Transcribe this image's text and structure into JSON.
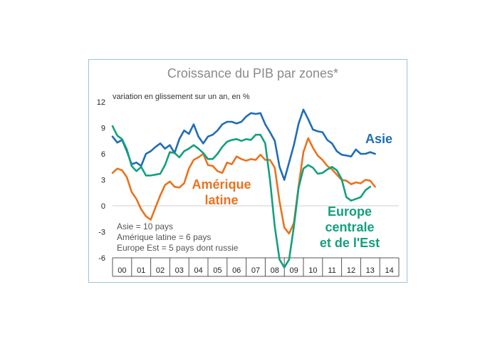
{
  "chart_data": {
    "type": "line",
    "title": "Croissance du PIB par zones*",
    "subtitle": "variation en glissement sur un an, en %",
    "ylim": [
      -6,
      12
    ],
    "yticks": [
      "12",
      "9",
      "6",
      "3",
      "0",
      "-3",
      "-6"
    ],
    "xlim": [
      2000,
      2015
    ],
    "xticks": [
      "00",
      "01",
      "02",
      "03",
      "04",
      "05",
      "06",
      "07",
      "08",
      "09",
      "10",
      "11",
      "12",
      "13",
      "14"
    ],
    "notes": [
      "Asie = 10 pays",
      "Amérique latine = 6 pays",
      "Europe Est = 5 pays dont russie"
    ],
    "series": [
      {
        "name": "Asie",
        "label_lines": [
          "Asie"
        ],
        "color": "#1f6db5",
        "points": [
          [
            2000.0,
            8.0
          ],
          [
            2000.25,
            7.3
          ],
          [
            2000.5,
            7.6
          ],
          [
            2000.75,
            6.3
          ],
          [
            2001.0,
            4.8
          ],
          [
            2001.25,
            5.0
          ],
          [
            2001.5,
            4.6
          ],
          [
            2001.75,
            6.0
          ],
          [
            2002.0,
            6.3
          ],
          [
            2002.25,
            6.8
          ],
          [
            2002.5,
            7.2
          ],
          [
            2002.75,
            6.6
          ],
          [
            2003.0,
            7.0
          ],
          [
            2003.25,
            6.1
          ],
          [
            2003.5,
            7.7
          ],
          [
            2003.75,
            8.7
          ],
          [
            2004.0,
            8.3
          ],
          [
            2004.25,
            9.4
          ],
          [
            2004.5,
            8.0
          ],
          [
            2004.75,
            7.2
          ],
          [
            2005.0,
            8.0
          ],
          [
            2005.25,
            8.2
          ],
          [
            2005.5,
            8.7
          ],
          [
            2005.75,
            9.4
          ],
          [
            2006.0,
            9.7
          ],
          [
            2006.25,
            9.7
          ],
          [
            2006.5,
            9.5
          ],
          [
            2006.75,
            9.7
          ],
          [
            2007.0,
            10.3
          ],
          [
            2007.25,
            10.7
          ],
          [
            2007.5,
            10.6
          ],
          [
            2007.75,
            10.7
          ],
          [
            2008.0,
            9.4
          ],
          [
            2008.25,
            8.5
          ],
          [
            2008.5,
            7.5
          ],
          [
            2008.75,
            4.5
          ],
          [
            2009.0,
            3.0
          ],
          [
            2009.25,
            5.0
          ],
          [
            2009.5,
            7.0
          ],
          [
            2009.75,
            9.5
          ],
          [
            2010.0,
            11.1
          ],
          [
            2010.25,
            10.0
          ],
          [
            2010.5,
            8.8
          ],
          [
            2010.75,
            8.6
          ],
          [
            2011.0,
            8.5
          ],
          [
            2011.25,
            7.6
          ],
          [
            2011.5,
            7.2
          ],
          [
            2011.75,
            6.3
          ],
          [
            2012.0,
            5.9
          ],
          [
            2012.25,
            5.8
          ],
          [
            2012.5,
            5.7
          ],
          [
            2012.75,
            6.5
          ],
          [
            2013.0,
            6.0
          ],
          [
            2013.25,
            6.0
          ],
          [
            2013.5,
            6.2
          ],
          [
            2013.75,
            6.0
          ]
        ]
      },
      {
        "name": "Amérique latine",
        "label_lines": [
          "Amérique",
          "latine"
        ],
        "color": "#e8731f",
        "points": [
          [
            2000.0,
            3.8
          ],
          [
            2000.25,
            4.3
          ],
          [
            2000.5,
            4.1
          ],
          [
            2000.75,
            3.3
          ],
          [
            2001.0,
            1.6
          ],
          [
            2001.25,
            0.8
          ],
          [
            2001.5,
            -0.4
          ],
          [
            2001.75,
            -1.2
          ],
          [
            2002.0,
            -1.6
          ],
          [
            2002.25,
            -0.2
          ],
          [
            2002.5,
            1.2
          ],
          [
            2002.75,
            2.4
          ],
          [
            2003.0,
            2.8
          ],
          [
            2003.25,
            2.2
          ],
          [
            2003.5,
            2.1
          ],
          [
            2003.75,
            2.6
          ],
          [
            2004.0,
            4.3
          ],
          [
            2004.25,
            5.3
          ],
          [
            2004.5,
            5.6
          ],
          [
            2004.75,
            6.0
          ],
          [
            2005.0,
            4.7
          ],
          [
            2005.25,
            4.6
          ],
          [
            2005.5,
            4.0
          ],
          [
            2005.75,
            3.8
          ],
          [
            2006.0,
            5.0
          ],
          [
            2006.25,
            4.8
          ],
          [
            2006.5,
            5.7
          ],
          [
            2006.75,
            5.4
          ],
          [
            2007.0,
            5.2
          ],
          [
            2007.25,
            5.4
          ],
          [
            2007.5,
            5.3
          ],
          [
            2007.75,
            5.9
          ],
          [
            2008.0,
            5.3
          ],
          [
            2008.25,
            5.3
          ],
          [
            2008.5,
            4.4
          ],
          [
            2008.75,
            0.5
          ],
          [
            2009.0,
            -2.5
          ],
          [
            2009.25,
            -3.2
          ],
          [
            2009.5,
            -2.0
          ],
          [
            2009.75,
            2.3
          ],
          [
            2010.0,
            6.2
          ],
          [
            2010.25,
            7.8
          ],
          [
            2010.5,
            6.7
          ],
          [
            2010.75,
            5.8
          ],
          [
            2011.0,
            5.3
          ],
          [
            2011.25,
            4.6
          ],
          [
            2011.5,
            4.2
          ],
          [
            2011.75,
            3.6
          ],
          [
            2012.0,
            3.0
          ],
          [
            2012.25,
            2.9
          ],
          [
            2012.5,
            2.5
          ],
          [
            2012.75,
            2.7
          ],
          [
            2013.0,
            2.6
          ],
          [
            2013.25,
            3.0
          ],
          [
            2013.5,
            2.9
          ],
          [
            2013.75,
            2.2
          ]
        ]
      },
      {
        "name": "Europe centrale et de l'Est",
        "label_lines": [
          "Europe",
          "centrale",
          "et de l'Est"
        ],
        "color": "#12a07e",
        "points": [
          [
            2000.0,
            9.2
          ],
          [
            2000.25,
            8.1
          ],
          [
            2000.5,
            7.7
          ],
          [
            2000.75,
            6.5
          ],
          [
            2001.0,
            4.6
          ],
          [
            2001.25,
            4.0
          ],
          [
            2001.5,
            4.5
          ],
          [
            2001.75,
            3.5
          ],
          [
            2002.0,
            3.5
          ],
          [
            2002.25,
            3.6
          ],
          [
            2002.5,
            3.7
          ],
          [
            2002.75,
            4.7
          ],
          [
            2003.0,
            6.2
          ],
          [
            2003.25,
            6.1
          ],
          [
            2003.5,
            5.6
          ],
          [
            2003.75,
            6.3
          ],
          [
            2004.0,
            6.6
          ],
          [
            2004.25,
            7.0
          ],
          [
            2004.5,
            6.6
          ],
          [
            2004.75,
            6.1
          ],
          [
            2005.0,
            5.4
          ],
          [
            2005.25,
            5.4
          ],
          [
            2005.5,
            6.0
          ],
          [
            2005.75,
            6.8
          ],
          [
            2006.0,
            7.4
          ],
          [
            2006.25,
            7.6
          ],
          [
            2006.5,
            7.7
          ],
          [
            2006.75,
            7.5
          ],
          [
            2007.0,
            7.7
          ],
          [
            2007.25,
            7.6
          ],
          [
            2007.5,
            8.2
          ],
          [
            2007.75,
            8.2
          ],
          [
            2008.0,
            7.2
          ],
          [
            2008.25,
            3.0
          ],
          [
            2008.5,
            -2.4
          ],
          [
            2008.75,
            -6.2
          ],
          [
            2009.0,
            -7.1
          ],
          [
            2009.25,
            -6.2
          ],
          [
            2009.5,
            -2.4
          ],
          [
            2009.75,
            2.1
          ],
          [
            2010.0,
            4.3
          ],
          [
            2010.25,
            4.7
          ],
          [
            2010.5,
            4.4
          ],
          [
            2010.75,
            3.7
          ],
          [
            2011.0,
            3.8
          ],
          [
            2011.25,
            4.2
          ],
          [
            2011.5,
            4.5
          ],
          [
            2011.75,
            4.1
          ],
          [
            2012.0,
            3.1
          ],
          [
            2012.25,
            1.0
          ],
          [
            2012.5,
            0.6
          ],
          [
            2012.75,
            0.8
          ],
          [
            2013.0,
            1.0
          ],
          [
            2013.25,
            1.8
          ],
          [
            2013.5,
            2.2
          ]
        ]
      }
    ]
  }
}
